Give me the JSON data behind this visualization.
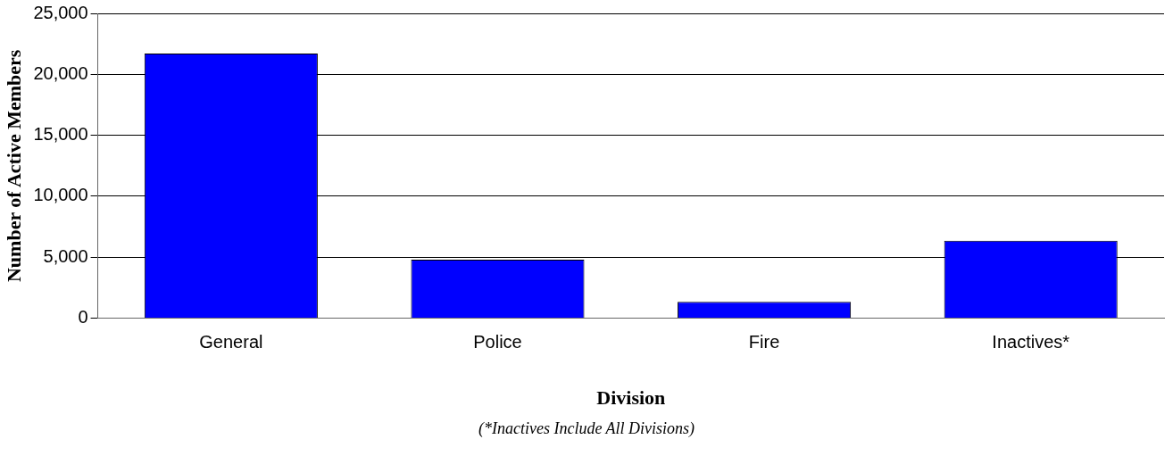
{
  "chart_data": {
    "type": "bar",
    "categories": [
      "General",
      "Police",
      "Fire",
      "Inactives*"
    ],
    "values": [
      21700,
      4800,
      1350,
      6350
    ],
    "color": "#0000ff",
    "xlabel": "Division",
    "ylabel": "Number of Active Members",
    "annotations": [
      "(*Inactives Include All Divisions)"
    ],
    "ylim": [
      0,
      25000
    ],
    "yticks": [
      {
        "value": 0,
        "label": "0"
      },
      {
        "value": 5000,
        "label": "5,000"
      },
      {
        "value": 10000,
        "label": "10,000"
      },
      {
        "value": 15000,
        "label": "15,000"
      },
      {
        "value": 20000,
        "label": "20,000"
      },
      {
        "value": 25000,
        "label": "25,000"
      }
    ],
    "grid": "y",
    "legend": false
  }
}
